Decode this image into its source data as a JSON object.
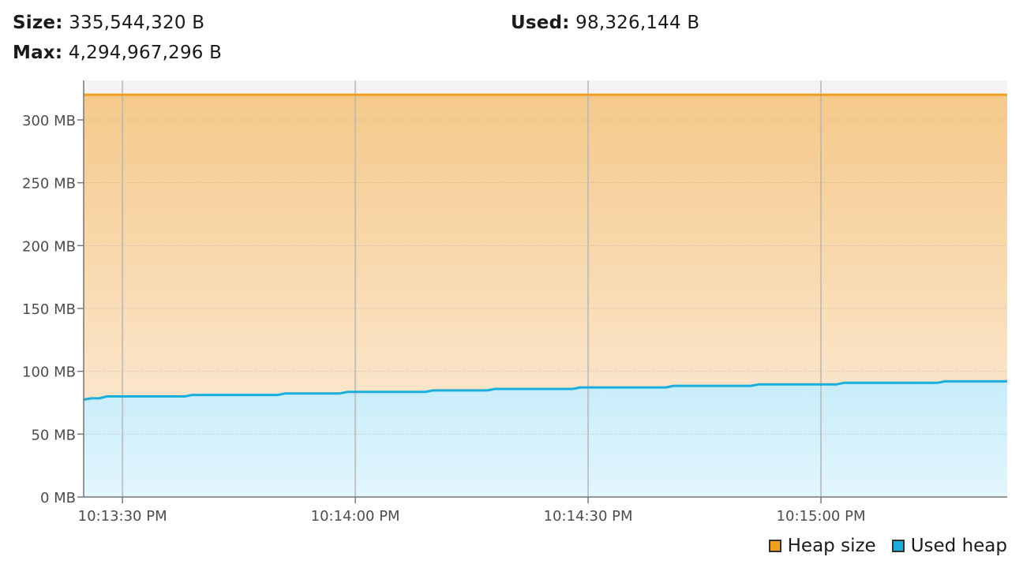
{
  "stats": {
    "size_label": "Size:",
    "size_value": "335,544,320 B",
    "used_label": "Used:",
    "used_value": "98,326,144 B",
    "max_label": "Max:",
    "max_value": "4,294,967,296 B"
  },
  "colors": {
    "heap_size": "#f0a01e",
    "used_heap": "#1aaedd"
  },
  "legend": [
    {
      "label": "Heap size",
      "color": "#f0a01e"
    },
    {
      "label": "Used heap",
      "color": "#1aaedd"
    }
  ],
  "chart_data": {
    "type": "area",
    "title": "",
    "xlabel": "",
    "ylabel": "",
    "ylim": [
      0,
      320
    ],
    "y_unit": "MB",
    "y_ticks": [
      0,
      50,
      100,
      150,
      200,
      250,
      300
    ],
    "y_tick_labels": [
      "0 MB",
      "50 MB",
      "100 MB",
      "150 MB",
      "200 MB",
      "250 MB",
      "300 MB"
    ],
    "x_range_seconds": [
      "10:13:25 PM",
      "10:15:24 PM"
    ],
    "x_ticks": [
      "10:13:30 PM",
      "10:14:00 PM",
      "10:14:30 PM",
      "10:15:00 PM"
    ],
    "grid": true,
    "legend_position": "bottom-right",
    "series": [
      {
        "name": "Heap size",
        "x": [
          "10:13:25 PM",
          "10:15:24 PM"
        ],
        "values": [
          320,
          320
        ]
      },
      {
        "name": "Used heap",
        "x": [
          "10:13:25 PM",
          "10:13:26 PM",
          "10:13:27 PM",
          "10:13:28 PM",
          "10:13:38 PM",
          "10:13:39 PM",
          "10:13:50 PM",
          "10:13:51 PM",
          "10:13:58 PM",
          "10:13:59 PM",
          "10:14:09 PM",
          "10:14:10 PM",
          "10:14:17 PM",
          "10:14:18 PM",
          "10:14:28 PM",
          "10:14:29 PM",
          "10:14:40 PM",
          "10:14:41 PM",
          "10:14:51 PM",
          "10:14:52 PM",
          "10:15:02 PM",
          "10:15:03 PM",
          "10:15:15 PM",
          "10:15:16 PM",
          "10:15:24 PM"
        ],
        "values": [
          77.5,
          78.5,
          78.5,
          80,
          80,
          81.2,
          81.2,
          82.4,
          82.4,
          83.6,
          83.6,
          84.8,
          84.8,
          86,
          86,
          87.2,
          87.2,
          88.4,
          88.4,
          89.6,
          89.6,
          90.8,
          90.8,
          92,
          92
        ]
      }
    ]
  }
}
